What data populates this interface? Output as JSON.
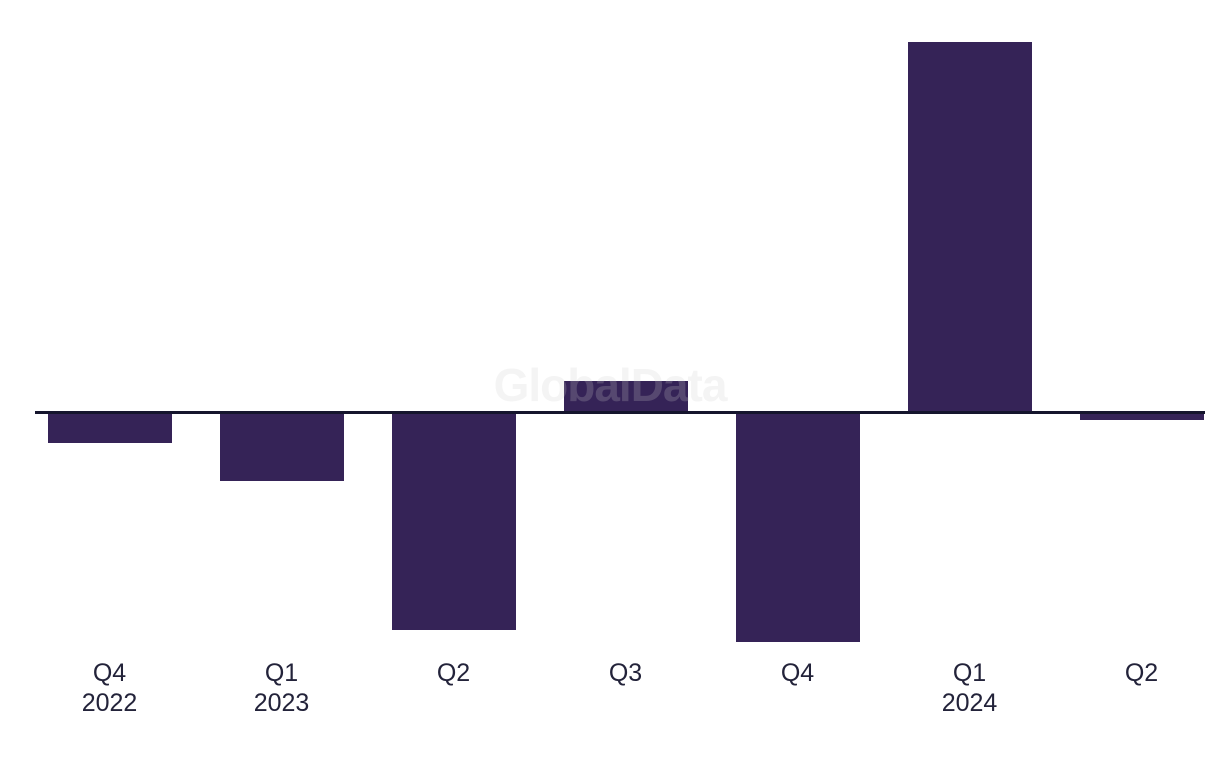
{
  "watermark": {
    "text": "GlobalData"
  },
  "chart_data": {
    "type": "bar",
    "title": "",
    "xlabel": "",
    "ylabel": "",
    "categories": [
      {
        "quarter": "Q4",
        "year": "2022"
      },
      {
        "quarter": "Q1",
        "year": "2023"
      },
      {
        "quarter": "Q2",
        "year": ""
      },
      {
        "quarter": "Q3",
        "year": ""
      },
      {
        "quarter": "Q4",
        "year": ""
      },
      {
        "quarter": "Q1",
        "year": "2024"
      },
      {
        "quarter": "Q2",
        "year": ""
      }
    ],
    "values": [
      -3.0,
      -6.8,
      -21.7,
      3.0,
      -22.9,
      36.9,
      -0.7
    ],
    "value_unit": "unlabeled (relative scale estimated from bar heights; no y-axis ticks shown)",
    "ylim": [
      -25,
      40
    ],
    "baseline": 0,
    "grid": false,
    "legend": false,
    "series_count": 1,
    "colors": {
      "bar": "#352357",
      "axis_line": "#15152D",
      "tick_label": "#23233A",
      "watermark": "rgba(203,203,203,0.22)",
      "background": "#ffffff"
    }
  }
}
